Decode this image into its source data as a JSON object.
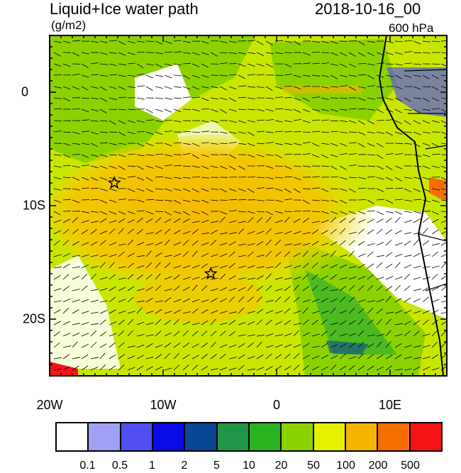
{
  "header": {
    "title": "Liquid+Ice water path",
    "units": "(g/m2)",
    "date": "2018-10-16_00",
    "level": "600 hPa"
  },
  "map": {
    "lon_range": [
      -20,
      15
    ],
    "lat_range": [
      -25,
      5
    ],
    "lon_ticks": [
      {
        "value": -20,
        "label": "20W"
      },
      {
        "value": -10,
        "label": "10W"
      },
      {
        "value": 0,
        "label": "0"
      },
      {
        "value": 10,
        "label": "10E"
      }
    ],
    "lat_ticks": [
      {
        "value": 0,
        "label": "0"
      },
      {
        "value": -10,
        "label": "10S"
      },
      {
        "value": -20,
        "label": "20S"
      }
    ],
    "markers": [
      {
        "name": "star-marker",
        "lon": -14.3,
        "lat": -8.0
      },
      {
        "name": "star-marker",
        "lon": -5.8,
        "lat": -16.0
      }
    ],
    "field_colors": {
      "ocean_low": "#c8e600",
      "high": "#f5b800",
      "moderate": "#3cb428",
      "clear": "#ffffff"
    }
  },
  "colorbar": {
    "colors": [
      "#ffffff",
      "#a0a0f5",
      "#5050f0",
      "#0a0ae6",
      "#0a4696",
      "#1e9646",
      "#28b41e",
      "#8cd200",
      "#e6f000",
      "#f5b400",
      "#f56e00",
      "#f51414"
    ],
    "labels": [
      "0.1",
      "0.5",
      "1",
      "2",
      "5",
      "10",
      "20",
      "50",
      "100",
      "200",
      "500"
    ]
  }
}
